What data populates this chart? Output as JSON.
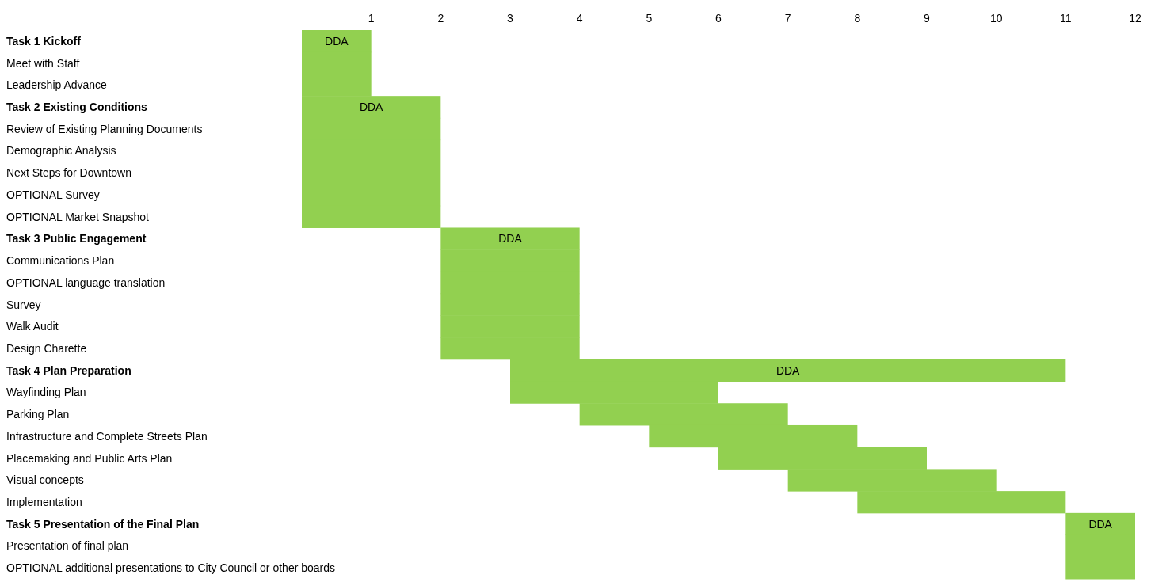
{
  "chart_data": {
    "type": "bar",
    "orientation": "horizontal",
    "categories": [
      "Task 1 Kickoff",
      "Meet with Staff",
      "Leadership Advance",
      "Task 2 Existing Conditions",
      "Review of Existing Planning Documents",
      "Demographic Analysis",
      "Next Steps for Downtown",
      "OPTIONAL Survey",
      "OPTIONAL Market Snapshot",
      "Task 3 Public Engagement",
      "Communications Plan",
      "OPTIONAL language translation",
      "Survey",
      "Walk Audit",
      "Design Charette",
      "Task 4 Plan Preparation",
      "Wayfinding Plan",
      "Parking Plan",
      "Infrastructure and Complete Streets Plan",
      "Placemaking and Public Arts Plan",
      "Visual concepts",
      "Implementation",
      "Task 5 Presentation of the Final Plan",
      "Presentation of final plan",
      "OPTIONAL additional presentations to City Council or other boards"
    ],
    "base": [
      0,
      0,
      0,
      0,
      0,
      0,
      0,
      0,
      0,
      2,
      2,
      2,
      2,
      2,
      2,
      3,
      3,
      4,
      5,
      6,
      7,
      8,
      11,
      11,
      11
    ],
    "values": [
      1,
      1,
      1,
      2,
      2,
      2,
      2,
      2,
      2,
      2,
      2,
      2,
      2,
      2,
      2,
      8,
      3,
      3,
      3,
      3,
      3,
      3,
      1,
      1,
      1
    ],
    "color": "#92d050",
    "xlim": [
      0,
      12
    ],
    "xticks": [
      1,
      2,
      3,
      4,
      5,
      6,
      7,
      8,
      9,
      10,
      11,
      12
    ],
    "value_labels": [
      "DDA",
      null,
      null,
      "DDA",
      null,
      null,
      null,
      null,
      null,
      "DDA",
      null,
      null,
      null,
      null,
      null,
      "DDA",
      null,
      null,
      null,
      null,
      null,
      null,
      "DDA",
      null,
      null
    ],
    "grid": false
  }
}
